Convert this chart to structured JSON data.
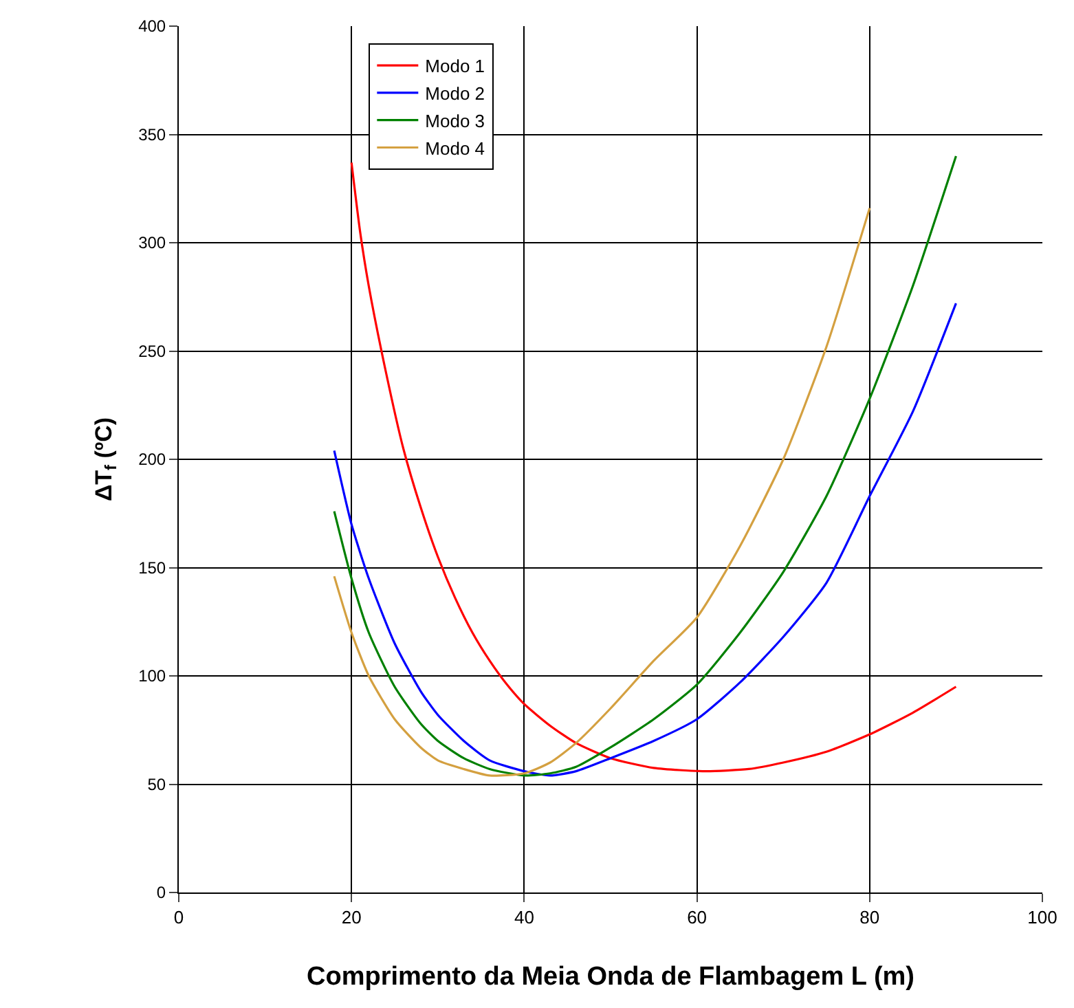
{
  "chart_data": {
    "type": "line",
    "xlabel": "Comprimento da Meia Onda de Flambagem L (m)",
    "ylabel": "ΔT$_{f}$ (ºC)",
    "xlim": [
      0,
      100
    ],
    "xticks": [
      0,
      20,
      40,
      60,
      80,
      100
    ],
    "ylim": [
      0,
      400
    ],
    "yticks": [
      0,
      50,
      100,
      150,
      200,
      250,
      300,
      350,
      400
    ],
    "grid": true,
    "legend": "top left",
    "marker": "none",
    "line_style": "solid",
    "series": [
      {
        "name": "Modo 1",
        "color": "#ff0000",
        "x": [
          20,
          21,
          22,
          24,
          26,
          28,
          30,
          32,
          34,
          36,
          38,
          40,
          43,
          46,
          50,
          55,
          61,
          66,
          70,
          75,
          80,
          85,
          90
        ],
        "values": [
          337,
          305,
          280,
          240,
          205,
          178,
          155,
          136,
          120,
          107,
          96,
          87,
          77,
          69,
          62,
          57.5,
          56,
          57,
          60,
          65,
          73,
          83,
          95
        ]
      },
      {
        "name": "Modo 2",
        "color": "#0000ff",
        "x": [
          18,
          20,
          22,
          25,
          28,
          30,
          33,
          36,
          40,
          43,
          46,
          50,
          55,
          60,
          65,
          70,
          75,
          80,
          85,
          90
        ],
        "values": [
          204,
          170,
          145,
          115,
          93,
          82,
          70,
          61,
          56,
          54,
          56,
          62,
          70,
          80,
          97,
          118,
          143,
          183,
          222,
          272
        ]
      },
      {
        "name": "Modo 3",
        "color": "#008000",
        "x": [
          18,
          20,
          22,
          25,
          28,
          30,
          33,
          36,
          40,
          43,
          46,
          50,
          55,
          60,
          65,
          70,
          75,
          80,
          85,
          90
        ],
        "values": [
          176,
          145,
          120,
          95,
          78,
          70,
          62,
          57,
          54,
          55,
          58,
          67,
          80,
          96,
          120,
          148,
          183,
          228,
          280,
          340
        ]
      },
      {
        "name": "Modo 4",
        "color": "#d4a040",
        "x": [
          18,
          20,
          22,
          25,
          28,
          30,
          33,
          36,
          40,
          43,
          46,
          50,
          55,
          60,
          65,
          70,
          75,
          80
        ],
        "values": [
          146,
          120,
          100,
          80,
          67,
          61,
          57,
          54,
          55,
          60,
          69,
          85,
          107,
          127,
          160,
          200,
          252,
          316
        ]
      }
    ]
  }
}
